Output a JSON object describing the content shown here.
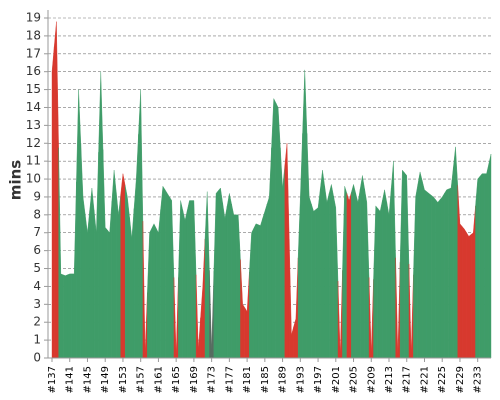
{
  "chart_data": {
    "type": "area",
    "ylabel": "mins",
    "categories": [
      "#137",
      null,
      null,
      null,
      "#141",
      null,
      null,
      null,
      "#145",
      null,
      null,
      null,
      "#149",
      null,
      null,
      null,
      "#153",
      null,
      null,
      null,
      "#157",
      null,
      null,
      null,
      "#161",
      null,
      null,
      null,
      "#165",
      null,
      null,
      null,
      "#169",
      null,
      null,
      null,
      "#173",
      null,
      null,
      null,
      "#177",
      null,
      null,
      null,
      "#181",
      null,
      null,
      null,
      "#185",
      null,
      null,
      null,
      "#189",
      null,
      null,
      null,
      "#193",
      null,
      null,
      null,
      "#197",
      null,
      null,
      null,
      "#201",
      null,
      null,
      null,
      "#205",
      null,
      null,
      null,
      "#209",
      null,
      null,
      null,
      "#213",
      null,
      null,
      null,
      "#217",
      null,
      null,
      null,
      "#221",
      null,
      null,
      null,
      "#225",
      null,
      null,
      null,
      "#229",
      null,
      null,
      null,
      "#233",
      null,
      null,
      null
    ],
    "values": [
      16,
      18.8,
      4.7,
      4.6,
      4.7,
      4.7,
      15,
      9,
      7,
      9.5,
      7,
      16,
      7.3,
      7,
      10.5,
      8,
      10.3,
      9,
      6.7,
      10,
      15,
      0.3,
      7,
      7.5,
      7,
      9.6,
      9.2,
      8.8,
      0.2,
      8.8,
      7.7,
      8.8,
      8.8,
      0.5,
      4,
      9.3,
      0.5,
      9.2,
      9.5,
      7.8,
      9.2,
      8,
      8,
      3,
      2.6,
      7,
      7.5,
      7.4,
      8.2,
      9,
      14.5,
      14,
      9.5,
      12,
      1.3,
      2.2,
      9,
      16.1,
      9,
      8.2,
      8.4,
      10.5,
      8.7,
      9.7,
      8.4,
      0.2,
      9.6,
      8.8,
      9.7,
      8.7,
      10.2,
      8.7,
      0.3,
      8.5,
      8.2,
      9.4,
      8,
      11,
      0.2,
      10.5,
      10.2,
      0.3,
      9,
      10.4,
      9.4,
      9.2,
      9,
      8.7,
      9,
      9.4,
      9.5,
      11.8,
      7.5,
      7.2,
      6.8,
      7,
      10,
      10.3,
      10.3,
      11.4
    ],
    "colors": [
      "#d7392e",
      "#d7392e",
      "#3f9c68",
      "#3f9c68",
      "#3f9c68",
      "#3f9c68",
      "#3f9c68",
      "#3f9c68",
      "#3f9c68",
      "#3f9c68",
      "#3f9c68",
      "#3f9c68",
      "#3f9c68",
      "#3f9c68",
      "#3f9c68",
      "#3f9c68",
      "#d7392e",
      "#3f9c68",
      "#3f9c68",
      "#3f9c68",
      "#3f9c68",
      "#d7392e",
      "#3f9c68",
      "#3f9c68",
      "#3f9c68",
      "#3f9c68",
      "#3f9c68",
      "#3f9c68",
      "#d7392e",
      "#3f9c68",
      "#3f9c68",
      "#3f9c68",
      "#3f9c68",
      "#d7392e",
      "#d7392e",
      "#3f9c68",
      "#566c60",
      "#3f9c68",
      "#3f9c68",
      "#3f9c68",
      "#3f9c68",
      "#3f9c68",
      "#3f9c68",
      "#d7392e",
      "#d7392e",
      "#3f9c68",
      "#3f9c68",
      "#3f9c68",
      "#3f9c68",
      "#3f9c68",
      "#3f9c68",
      "#3f9c68",
      "#3f9c68",
      "#d7392e",
      "#d7392e",
      "#d7392e",
      "#3f9c68",
      "#3f9c68",
      "#3f9c68",
      "#3f9c68",
      "#3f9c68",
      "#3f9c68",
      "#3f9c68",
      "#3f9c68",
      "#3f9c68",
      "#d7392e",
      "#3f9c68",
      "#d7392e",
      "#3f9c68",
      "#3f9c68",
      "#3f9c68",
      "#3f9c68",
      "#d7392e",
      "#3f9c68",
      "#3f9c68",
      "#3f9c68",
      "#3f9c68",
      "#3f9c68",
      "#d7392e",
      "#3f9c68",
      "#3f9c68",
      "#d7392e",
      "#3f9c68",
      "#3f9c68",
      "#3f9c68",
      "#3f9c68",
      "#3f9c68",
      "#3f9c68",
      "#3f9c68",
      "#3f9c68",
      "#3f9c68",
      "#3f9c68",
      "#d7392e",
      "#d7392e",
      "#d7392e",
      "#d7392e",
      "#3f9c68",
      "#3f9c68",
      "#3f9c68",
      "#3f9c68"
    ],
    "ylim": [
      0,
      19
    ],
    "yticks": [
      0,
      1,
      2,
      3,
      4,
      5,
      6,
      7,
      8,
      9,
      10,
      11,
      12,
      13,
      14,
      15,
      16,
      17,
      18,
      19
    ],
    "grid": true
  }
}
